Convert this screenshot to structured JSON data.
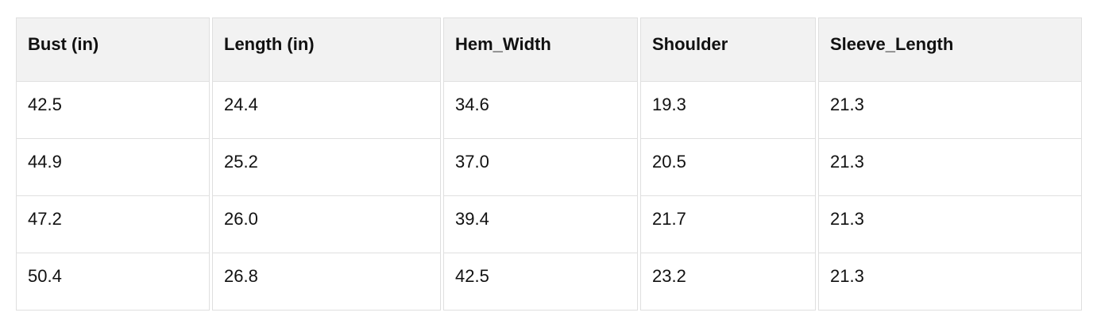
{
  "chart_data": {
    "type": "table",
    "columns": [
      "Bust (in)",
      "Length (in)",
      "Hem_Width",
      "Shoulder",
      "Sleeve_Length"
    ],
    "rows": [
      [
        "42.5",
        "24.4",
        "34.6",
        "19.3",
        "21.3"
      ],
      [
        "44.9",
        "25.2",
        "37.0",
        "20.5",
        "21.3"
      ],
      [
        "47.2",
        "26.0",
        "39.4",
        "21.7",
        "21.3"
      ],
      [
        "50.4",
        "26.8",
        "42.5",
        "23.2",
        "21.3"
      ]
    ]
  },
  "colors": {
    "header_bg": "#f2f2f2",
    "border": "#dfdfdf",
    "text": "#111111",
    "page_bg": "#ffffff"
  }
}
